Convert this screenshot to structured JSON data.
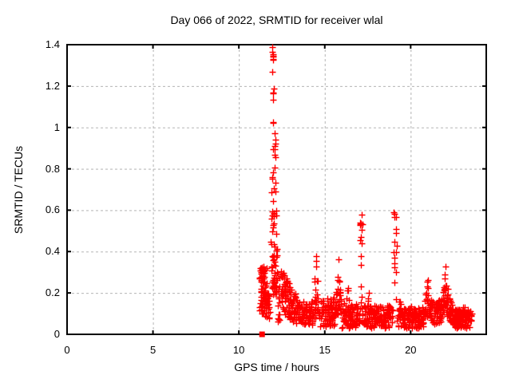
{
  "chart_data": {
    "type": "scatter",
    "title": "Day 066 of 2022, SRMTID for receiver wlal",
    "xlabel": "GPS time / hours",
    "ylabel": "SRMTID / TECUs",
    "xlim": [
      0,
      24.4
    ],
    "ylim": [
      0,
      1.4
    ],
    "xticks": [
      0,
      5,
      10,
      15,
      20
    ],
    "yticks": [
      0,
      0.2,
      0.4,
      0.6,
      0.8,
      1,
      1.2,
      1.4
    ],
    "grid": true,
    "grid_color": "#b4b4b4",
    "border_color": "#000000",
    "legend": "none",
    "marker": {
      "glyph": "plus",
      "color": "#ff0000",
      "size": 8
    },
    "flag_point": {
      "x": 11.35,
      "y": 0,
      "glyph": "filled-square",
      "color": "#ff0000",
      "size": 7
    },
    "seed": 20220660,
    "time_range_hours": [
      11.18,
      23.55
    ],
    "peaks": [
      {
        "x": 12.0,
        "y": 1.4
      },
      {
        "x": 14.5,
        "y": 0.42
      },
      {
        "x": 15.8,
        "y": 0.43
      },
      {
        "x": 17.1,
        "y": 0.58
      },
      {
        "x": 19.1,
        "y": 0.6
      },
      {
        "x": 21.0,
        "y": 0.28
      },
      {
        "x": 22.05,
        "y": 0.37
      }
    ],
    "scatter_segments": [
      {
        "type": "band",
        "x0": 11.18,
        "x1": 11.62,
        "n": 85,
        "ylo": 0.1,
        "yhi": 0.33
      },
      {
        "type": "band",
        "x0": 11.5,
        "x1": 11.8,
        "n": 25,
        "ylo": 0.07,
        "yhi": 0.2
      },
      {
        "type": "band",
        "x0": 11.85,
        "x1": 12.22,
        "n": 45,
        "ylo": 0.17,
        "yhi": 0.45
      },
      {
        "type": "band",
        "x0": 11.9,
        "x1": 12.18,
        "n": 22,
        "ylo": 0.45,
        "yhi": 0.82
      },
      {
        "type": "band",
        "x0": 11.97,
        "x1": 12.13,
        "n": 10,
        "ylo": 0.82,
        "yhi": 1.06
      },
      {
        "type": "band",
        "x0": 11.93,
        "x1": 12.02,
        "n": 13,
        "ylo": 1.1,
        "yhi": 1.4
      },
      {
        "type": "column",
        "x0": 12.27,
        "x1": 12.38,
        "n": 16,
        "ylo": 0.05,
        "yhi": 0.31
      },
      {
        "type": "trend",
        "x0": 12.45,
        "x1": 13.35,
        "n": 105,
        "ylo": 0.1,
        "yhi": 0.32,
        "ylo1": 0.05,
        "yhi1": 0.19
      },
      {
        "type": "band",
        "x0": 13.35,
        "x1": 14.3,
        "n": 85,
        "ylo": 0.04,
        "yhi": 0.16
      },
      {
        "type": "peak",
        "x0": 14.32,
        "x1": 14.68,
        "n": 34,
        "base": 0.07,
        "top": 0.42,
        "center": 14.5
      },
      {
        "type": "band",
        "x0": 14.7,
        "x1": 15.55,
        "n": 75,
        "ylo": 0.04,
        "yhi": 0.18
      },
      {
        "type": "peak",
        "x0": 15.58,
        "x1": 15.98,
        "n": 45,
        "base": 0.09,
        "top": 0.43,
        "center": 15.8
      },
      {
        "type": "band",
        "x0": 16.0,
        "x1": 16.95,
        "n": 85,
        "ylo": 0.03,
        "yhi": 0.15
      },
      {
        "type": "peak",
        "x0": 16.2,
        "x1": 16.5,
        "n": 12,
        "base": 0.12,
        "top": 0.23,
        "center": 16.35
      },
      {
        "type": "column",
        "x0": 17.04,
        "x1": 17.18,
        "n": 15,
        "ylo": 0.18,
        "yhi": 0.58
      },
      {
        "type": "peak",
        "x0": 16.98,
        "x1": 17.3,
        "n": 20,
        "base": 0.05,
        "top": 0.2,
        "center": 17.1
      },
      {
        "type": "band",
        "x0": 17.3,
        "x1": 18.95,
        "n": 150,
        "ylo": 0.03,
        "yhi": 0.14
      },
      {
        "type": "peak",
        "x0": 17.4,
        "x1": 17.75,
        "n": 16,
        "base": 0.1,
        "top": 0.23,
        "center": 17.55
      },
      {
        "type": "column",
        "x0": 19.02,
        "x1": 19.18,
        "n": 16,
        "ylo": 0.15,
        "yhi": 0.6
      },
      {
        "type": "peak",
        "x0": 19.25,
        "x1": 19.55,
        "n": 14,
        "base": 0.08,
        "top": 0.22,
        "center": 19.4
      },
      {
        "type": "band",
        "x0": 19.2,
        "x1": 20.75,
        "n": 130,
        "ylo": 0.03,
        "yhi": 0.13
      },
      {
        "type": "peak",
        "x0": 19.9,
        "x1": 20.25,
        "n": 12,
        "base": 0.07,
        "top": 0.17,
        "center": 20.05
      },
      {
        "type": "peak",
        "x0": 20.78,
        "x1": 21.18,
        "n": 40,
        "base": 0.08,
        "top": 0.28,
        "center": 20.97
      },
      {
        "type": "band",
        "x0": 21.18,
        "x1": 21.82,
        "n": 60,
        "ylo": 0.05,
        "yhi": 0.17
      },
      {
        "type": "peak",
        "x0": 21.85,
        "x1": 22.25,
        "n": 55,
        "base": 0.08,
        "top": 0.37,
        "center": 22.03
      },
      {
        "type": "trend",
        "x0": 22.25,
        "x1": 22.6,
        "n": 35,
        "ylo": 0.06,
        "yhi": 0.18,
        "ylo1": 0.03,
        "yhi1": 0.1
      },
      {
        "type": "band",
        "x0": 22.6,
        "x1": 23.55,
        "n": 110,
        "ylo": 0.03,
        "yhi": 0.12
      },
      {
        "type": "peak",
        "x0": 22.9,
        "x1": 23.3,
        "n": 14,
        "base": 0.07,
        "top": 0.16,
        "center": 23.1
      }
    ]
  }
}
